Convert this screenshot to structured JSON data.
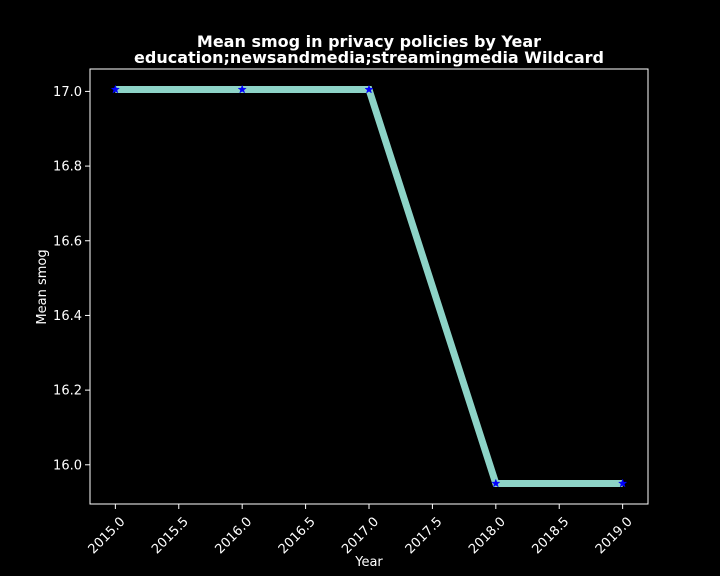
{
  "chart_data": {
    "type": "line",
    "title": "Mean smog in privacy policies by Year",
    "subtitle": "education;newsandmedia;streamingmedia Wildcard",
    "xlabel": "Year",
    "ylabel": "Mean smog",
    "x": [
      2015,
      2016,
      2017,
      2018,
      2019
    ],
    "series": [
      {
        "values": [
          17.005,
          17.005,
          17.005,
          15.95,
          15.95
        ]
      }
    ],
    "xlim": [
      2014.8,
      2019.2
    ],
    "ylim": [
      15.895,
      17.06
    ],
    "xticks": [
      "2015.0",
      "2015.5",
      "2016.0",
      "2016.5",
      "2017.0",
      "2017.5",
      "2018.0",
      "2018.5",
      "2019.0"
    ],
    "yticks": [
      "16.0",
      "16.2",
      "16.4",
      "16.6",
      "16.8",
      "17.0"
    ],
    "grid": false,
    "background": "#000000",
    "line_color": "#8dd3c7",
    "marker_color": "#0000ff",
    "marker": "star"
  }
}
